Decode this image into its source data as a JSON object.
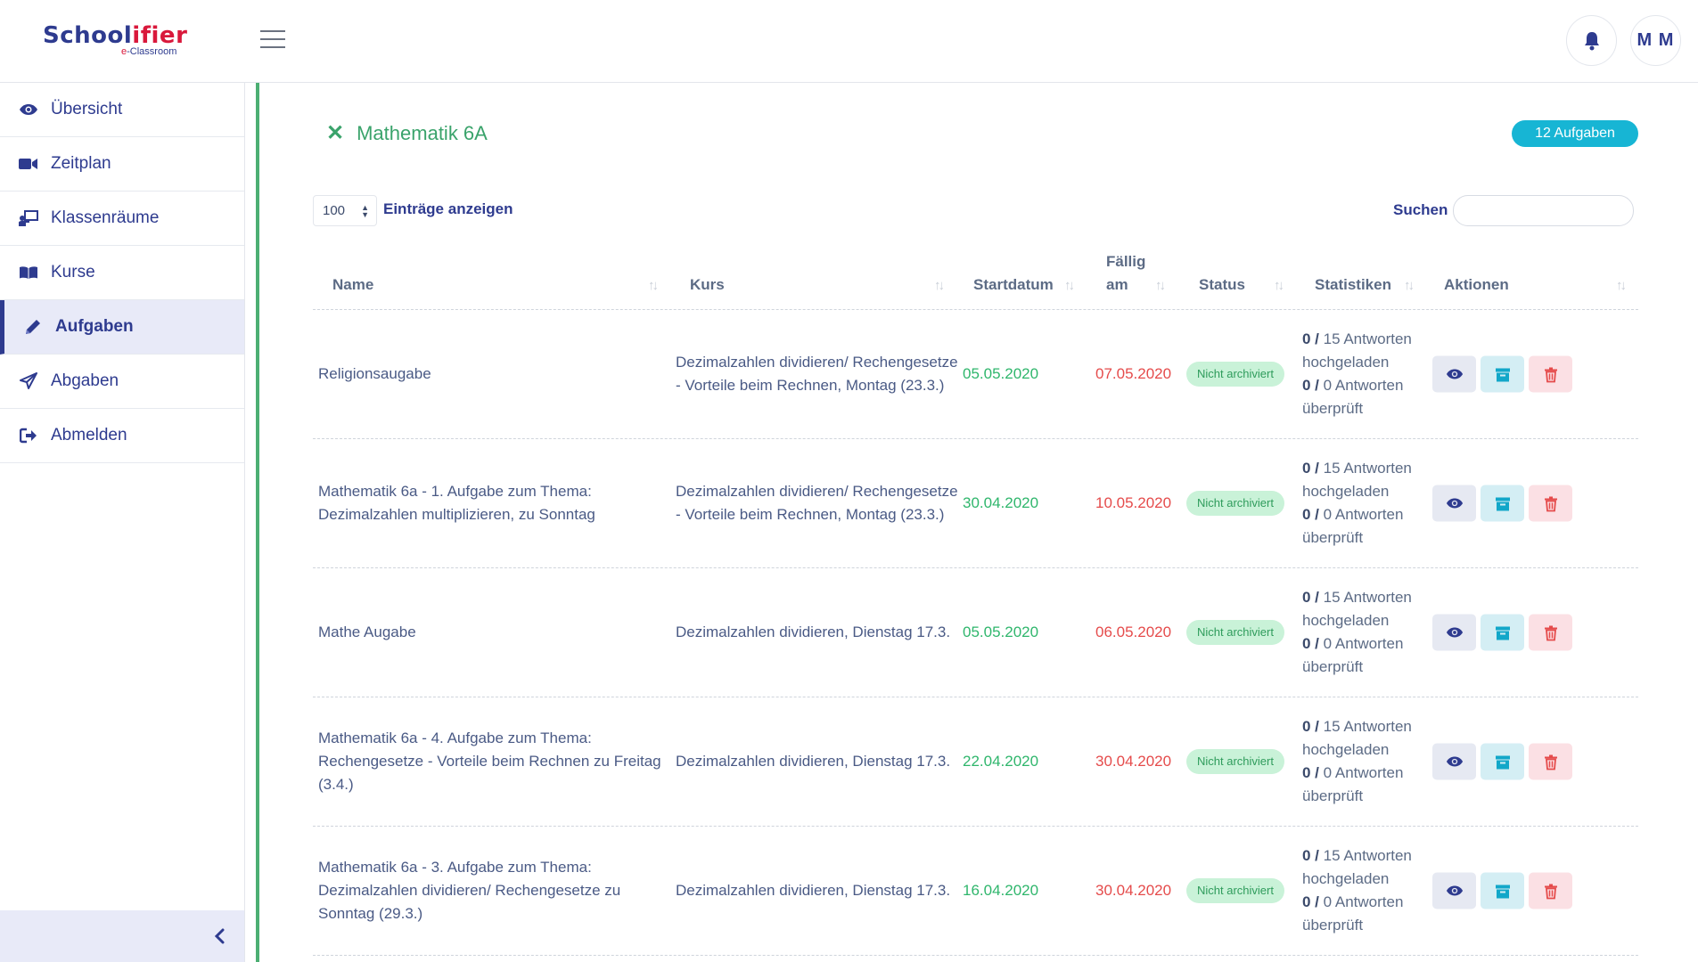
{
  "app": {
    "logo_text_1": "School",
    "logo_text_2": "ifier",
    "logo_sub_e": "e",
    "logo_sub": "-Classroom",
    "user_initials": "M M"
  },
  "sidebar": {
    "items": [
      {
        "label": "Übersicht",
        "icon": "eye-icon"
      },
      {
        "label": "Zeitplan",
        "icon": "video-icon"
      },
      {
        "label": "Klassenräume",
        "icon": "classroom-icon"
      },
      {
        "label": "Kurse",
        "icon": "book-icon"
      },
      {
        "label": "Aufgaben",
        "icon": "pencil-icon",
        "active": true
      },
      {
        "label": "Abgaben",
        "icon": "paper-plane-icon"
      },
      {
        "label": "Abmelden",
        "icon": "sign-out-icon"
      }
    ]
  },
  "course": {
    "title": "Mathematik 6A",
    "task_count": "12 Aufgaben"
  },
  "controls": {
    "page_length": "100",
    "page_length_label": "Einträge anzeigen",
    "search_label": "Suchen",
    "search_value": ""
  },
  "table": {
    "headers": {
      "name": "Name",
      "kurs": "Kurs",
      "startdatum": "Startdatum",
      "faellig_1": "Fällig",
      "faellig_2": "am",
      "status": "Status",
      "statistiken": "Statistiken",
      "aktionen": "Aktionen"
    },
    "rows": [
      {
        "name": "Religionsaugabe",
        "kurs": "Dezimalzahlen dividieren/ Rechengesetze - Vorteile beim Rechnen, Montag (23.3.)",
        "start": "05.05.2020",
        "due": "07.05.2020",
        "status": "Nicht archiviert",
        "uploaded_count": "0 /",
        "uploaded_text": "15 Antworten hochgeladen",
        "checked_count": "0 /",
        "checked_text": "0 Antworten überprüft"
      },
      {
        "name": "Mathematik 6a - 1. Aufgabe zum Thema: Dezimalzahlen multiplizieren, zu Sonntag",
        "kurs": "Dezimalzahlen dividieren/ Rechengesetze - Vorteile beim Rechnen, Montag (23.3.)",
        "start": "30.04.2020",
        "due": "10.05.2020",
        "status": "Nicht archiviert",
        "uploaded_count": "0 /",
        "uploaded_text": "15 Antworten hochgeladen",
        "checked_count": "0 /",
        "checked_text": "0 Antworten überprüft"
      },
      {
        "name": "Mathe Augabe",
        "kurs": "Dezimalzahlen dividieren, Dienstag 17.3.",
        "start": "05.05.2020",
        "due": "06.05.2020",
        "status": "Nicht archiviert",
        "uploaded_count": "0 /",
        "uploaded_text": "15 Antworten hochgeladen",
        "checked_count": "0 /",
        "checked_text": "0 Antworten überprüft"
      },
      {
        "name": "Mathematik 6a - 4. Aufgabe zum Thema: Rechengesetze - Vorteile beim Rechnen zu Freitag (3.4.)",
        "kurs": "Dezimalzahlen dividieren, Dienstag 17.3.",
        "start": "22.04.2020",
        "due": "30.04.2020",
        "status": "Nicht archiviert",
        "uploaded_count": "0 /",
        "uploaded_text": "15 Antworten hochgeladen",
        "checked_count": "0 /",
        "checked_text": "0 Antworten überprüft"
      },
      {
        "name": "Mathematik 6a - 3. Aufgabe zum Thema: Dezimalzahlen dividieren/ Rechengesetze zu Sonntag (29.3.)",
        "kurs": "Dezimalzahlen dividieren, Dienstag 17.3.",
        "start": "16.04.2020",
        "due": "30.04.2020",
        "status": "Nicht archiviert",
        "uploaded_count": "0 /",
        "uploaded_text": "15 Antworten hochgeladen",
        "checked_count": "0 /",
        "checked_text": "0 Antworten überprüft"
      }
    ]
  },
  "colors": {
    "brand": "#2e3b8f",
    "brand_accent": "#d9183b",
    "course_green": "#3aa36b",
    "badge_cyan": "#17b5d4",
    "start_green": "#2fb66c",
    "due_red": "#e54b4b"
  }
}
